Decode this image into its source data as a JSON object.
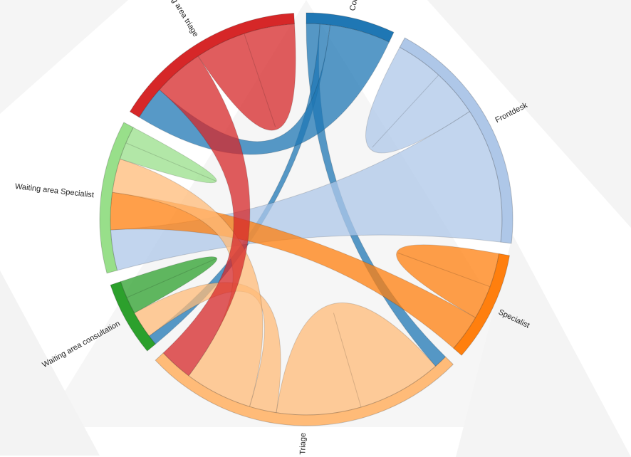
{
  "chart_data": {
    "type": "chord",
    "groups": [
      {
        "name": "Consultation",
        "color": "#1f77b4"
      },
      {
        "name": "Frontdesk",
        "color": "#aec7e8"
      },
      {
        "name": "Specialist",
        "color": "#ff7f0e"
      },
      {
        "name": "Triage",
        "color": "#ffbb78"
      },
      {
        "name": "Waiting area consultation",
        "color": "#2ca02c"
      },
      {
        "name": "Waiting area Specialist",
        "color": "#98df8a"
      },
      {
        "name": "Waiting area triage",
        "color": "#d62728"
      }
    ],
    "matrix": [
      [
        0,
        0,
        0,
        4,
        3,
        0,
        18
      ],
      [
        0,
        28,
        0,
        0,
        0,
        40,
        0
      ],
      [
        0,
        0,
        20,
        0,
        0,
        11,
        0
      ],
      [
        4,
        0,
        0,
        50,
        8,
        20,
        10
      ],
      [
        3,
        0,
        0,
        8,
        10,
        0,
        0
      ],
      [
        0,
        12,
        11,
        10,
        0,
        10,
        0
      ],
      [
        10,
        0,
        0,
        15,
        0,
        0,
        30
      ]
    ]
  }
}
